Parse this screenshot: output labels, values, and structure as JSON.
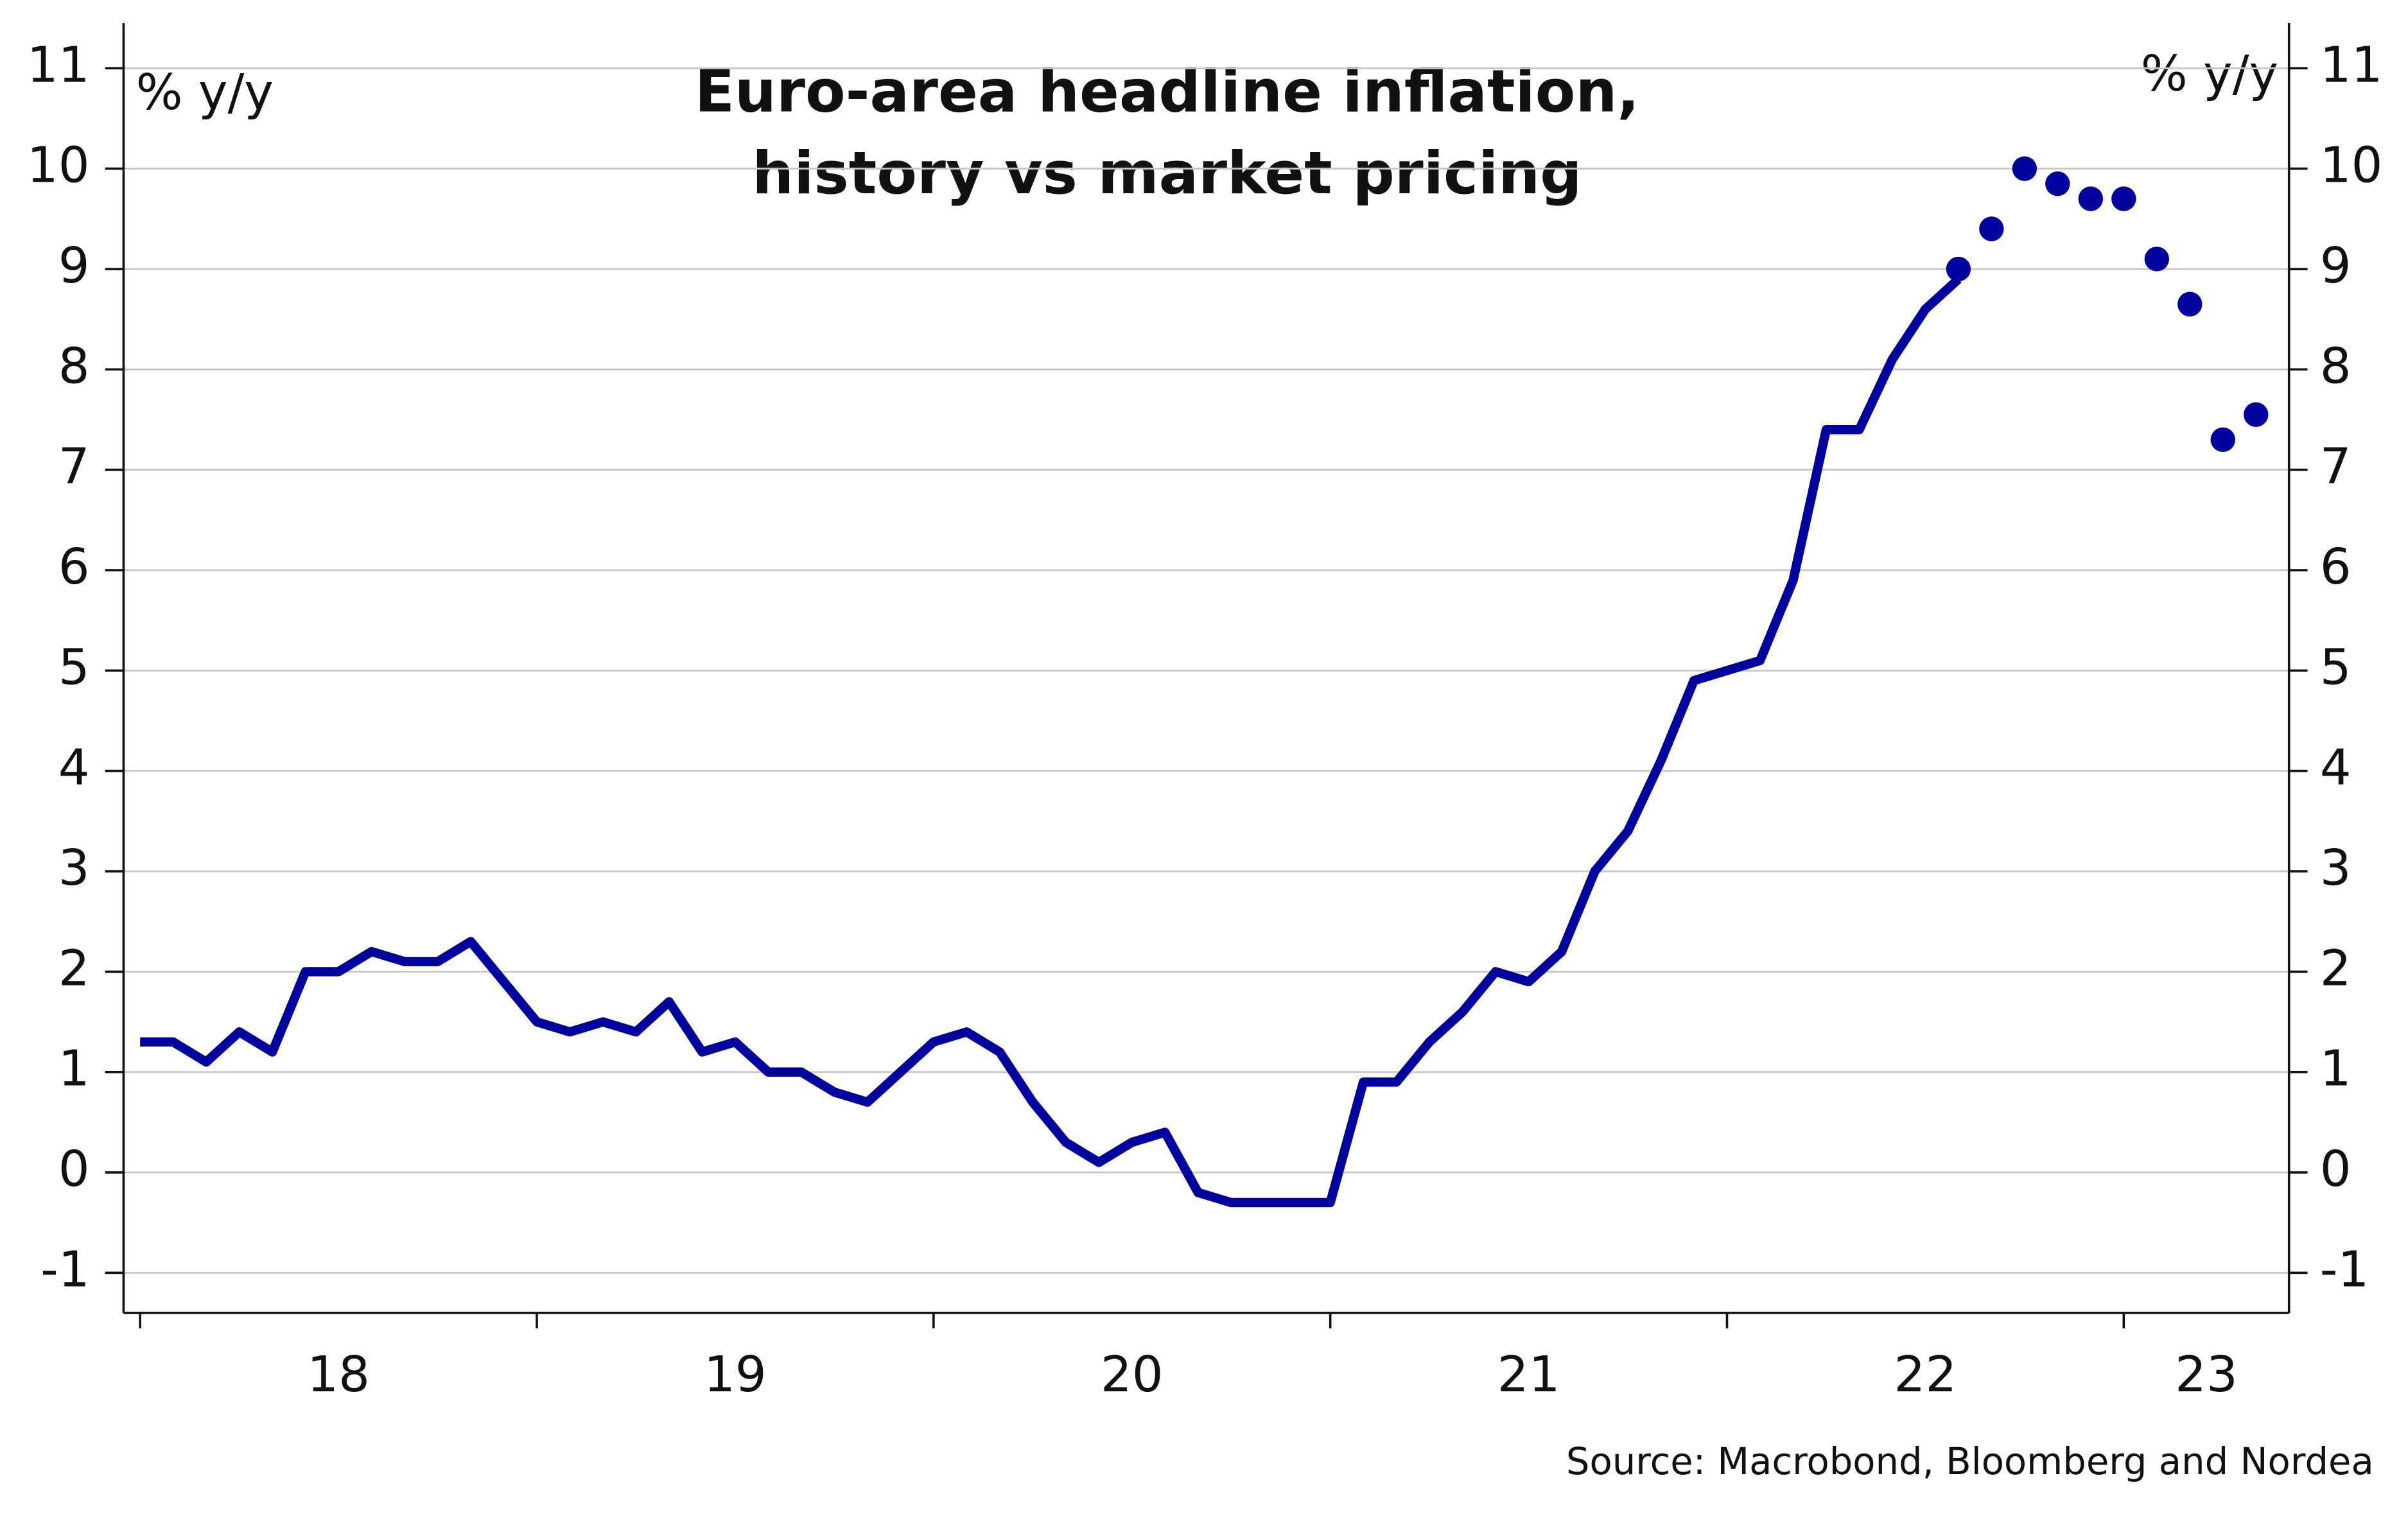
{
  "chart_data": {
    "type": "line",
    "title": [
      "Euro-area headline inflation,",
      "history vs market pricing"
    ],
    "y_label": "% y/y",
    "y2_label": "% y/y",
    "source": "Source: Macrobond, Bloomberg and Nordea",
    "xlim": [
      -0.5,
      65
    ],
    "xticks": [
      0,
      12,
      24,
      36,
      48,
      60
    ],
    "xtick_labels": [
      {
        "value": 6,
        "label": "18"
      },
      {
        "value": 18,
        "label": "19"
      },
      {
        "value": 30,
        "label": "20"
      },
      {
        "value": 42,
        "label": "21"
      },
      {
        "value": 54,
        "label": "22"
      },
      {
        "value": 62.5,
        "label": "23"
      }
    ],
    "ylim": [
      -1.4,
      11.45
    ],
    "yticks": [
      -1,
      0,
      1,
      2,
      3,
      4,
      5,
      6,
      7,
      8,
      9,
      10,
      11
    ],
    "y2lim": [
      -1.4,
      11.45
    ],
    "y2ticks": [
      -1,
      0,
      1,
      2,
      3,
      4,
      5,
      6,
      7,
      8,
      9,
      10,
      11
    ],
    "grid": true,
    "series": [
      {
        "style": "line",
        "color": "#00009c",
        "x": [
          0,
          1,
          2,
          3,
          4,
          5,
          6,
          7,
          8,
          9,
          10,
          11,
          12,
          13,
          14,
          15,
          16,
          17,
          18,
          19,
          20,
          21,
          22,
          23,
          24,
          25,
          26,
          27,
          28,
          29,
          30,
          31,
          32,
          33,
          34,
          35,
          36,
          37,
          38,
          39,
          40,
          41,
          42,
          43,
          44,
          45,
          46,
          47,
          48,
          49,
          50,
          51,
          52,
          53,
          54,
          55
        ],
        "values": [
          1.3,
          1.3,
          1.1,
          1.4,
          1.2,
          2.0,
          2.0,
          2.2,
          2.1,
          2.1,
          2.3,
          1.9,
          1.5,
          1.4,
          1.5,
          1.4,
          1.7,
          1.2,
          1.3,
          1.0,
          1.0,
          0.8,
          0.7,
          1.0,
          1.3,
          1.4,
          1.2,
          0.7,
          0.3,
          0.1,
          0.3,
          0.4,
          -0.2,
          -0.3,
          -0.3,
          -0.3,
          -0.3,
          0.9,
          0.9,
          1.3,
          1.6,
          2.0,
          1.9,
          2.2,
          3.0,
          3.4,
          4.1,
          4.9,
          5.0,
          5.1,
          5.9,
          7.4,
          7.4,
          8.1,
          8.6,
          8.9
        ]
      },
      {
        "style": "dots",
        "color": "#00009c",
        "x": [
          55,
          56,
          57,
          58,
          59,
          60,
          61,
          62,
          63,
          64
        ],
        "values": [
          9.0,
          9.4,
          10.0,
          9.85,
          9.7,
          9.7,
          9.1,
          8.65,
          7.3,
          7.55
        ]
      }
    ]
  }
}
